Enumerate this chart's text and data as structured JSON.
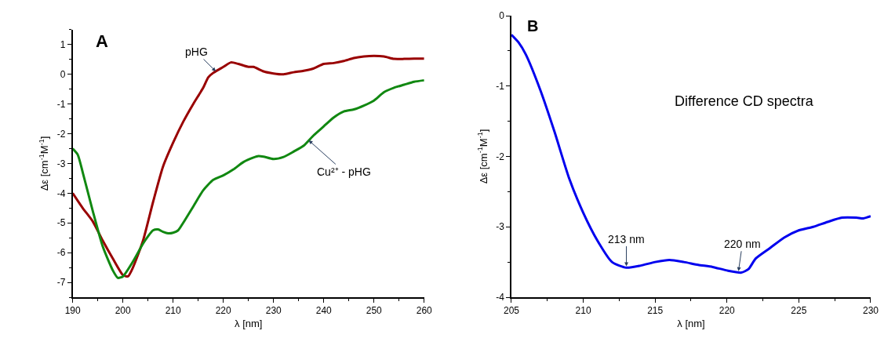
{
  "chart_data": [
    {
      "type": "line",
      "xlabel": "λ [nm]",
      "ylabel": "Δε [cm$^{-1}$M$^{-1}$]",
      "xlim": [
        190,
        260
      ],
      "xticks": [
        190,
        200,
        210,
        220,
        230,
        240,
        250,
        260
      ],
      "ylim": [
        -7.5,
        1.5
      ],
      "yticks": [
        -7,
        -6,
        -5,
        -4,
        -3,
        -2,
        -1,
        0,
        1
      ],
      "marker": "none",
      "line_style": "solid",
      "annotations": [
        "A",
        {
          "text": "pHG",
          "x": 218.5,
          "y": 0.1
        },
        {
          "text": "Cu²⁺ - pHG",
          "x": 237,
          "y": -2.22
        }
      ],
      "series": [
        {
          "color": "#990000",
          "x": [
            190,
            192,
            194,
            196,
            198,
            200,
            201,
            202,
            204,
            206,
            208,
            210,
            212,
            214,
            216,
            217,
            218,
            220,
            221.5,
            223,
            225,
            226,
            228,
            230,
            232,
            234,
            236,
            238,
            240,
            242,
            244,
            246,
            248,
            250,
            252,
            254,
            256,
            258,
            260
          ],
          "values": [
            -4.0,
            -4.5,
            -4.95,
            -5.6,
            -6.2,
            -6.75,
            -6.8,
            -6.5,
            -5.6,
            -4.3,
            -3.1,
            -2.3,
            -1.6,
            -1.0,
            -0.45,
            -0.1,
            0.05,
            0.25,
            0.4,
            0.35,
            0.25,
            0.25,
            0.1,
            0.03,
            0.0,
            0.07,
            0.12,
            0.2,
            0.35,
            0.38,
            0.45,
            0.55,
            0.6,
            0.62,
            0.6,
            0.52,
            0.52,
            0.53,
            0.53
          ]
        },
        {
          "color": "#118811",
          "x": [
            190,
            191,
            192,
            194,
            196,
            198,
            199,
            200,
            202,
            204,
            205,
            206,
            207,
            208,
            209,
            210,
            211,
            212,
            214,
            216,
            218,
            220,
            222,
            224,
            226,
            227,
            228,
            230,
            232,
            234,
            236,
            238,
            240,
            242,
            244,
            246,
            248,
            250,
            252,
            254,
            256,
            258,
            260
          ],
          "values": [
            -2.5,
            -2.7,
            -3.3,
            -4.6,
            -5.8,
            -6.6,
            -6.85,
            -6.8,
            -6.3,
            -5.7,
            -5.45,
            -5.25,
            -5.22,
            -5.3,
            -5.35,
            -5.33,
            -5.25,
            -5.0,
            -4.45,
            -3.9,
            -3.55,
            -3.4,
            -3.2,
            -2.95,
            -2.8,
            -2.75,
            -2.77,
            -2.85,
            -2.78,
            -2.6,
            -2.4,
            -2.05,
            -1.75,
            -1.45,
            -1.25,
            -1.18,
            -1.05,
            -0.88,
            -0.6,
            -0.45,
            -0.35,
            -0.25,
            -0.2
          ]
        }
      ]
    },
    {
      "type": "line",
      "xlabel": "λ [nm]",
      "ylabel": "Δε [cm$^{-1}$M$^{-1}$]",
      "xlim": [
        205,
        230
      ],
      "xticks": [
        205,
        210,
        215,
        220,
        225,
        230
      ],
      "ylim": [
        -4,
        0
      ],
      "yticks": [
        -4,
        -3,
        -2,
        -1,
        0
      ],
      "marker": "none",
      "line_style": "solid",
      "annotations": [
        "B",
        "Difference CD spectra",
        {
          "text": "213 nm",
          "x": 213,
          "y": -3.56
        },
        {
          "text": "220 nm",
          "x": 220.8,
          "y": -3.63
        }
      ],
      "series": [
        {
          "color": "#0000ee",
          "x": [
            205,
            205.5,
            206,
            207,
            208,
            209,
            210,
            211,
            212,
            213,
            214,
            215,
            216,
            217,
            218,
            219,
            220,
            221,
            221.5,
            222,
            223,
            224,
            225,
            226,
            227,
            228,
            229,
            229.5,
            230
          ],
          "values": [
            -0.27,
            -0.38,
            -0.55,
            -1.05,
            -1.65,
            -2.3,
            -2.8,
            -3.2,
            -3.5,
            -3.58,
            -3.55,
            -3.5,
            -3.47,
            -3.5,
            -3.54,
            -3.57,
            -3.62,
            -3.65,
            -3.6,
            -3.45,
            -3.3,
            -3.15,
            -3.05,
            -3.0,
            -2.93,
            -2.87,
            -2.87,
            -2.88,
            -2.85
          ]
        }
      ]
    }
  ]
}
